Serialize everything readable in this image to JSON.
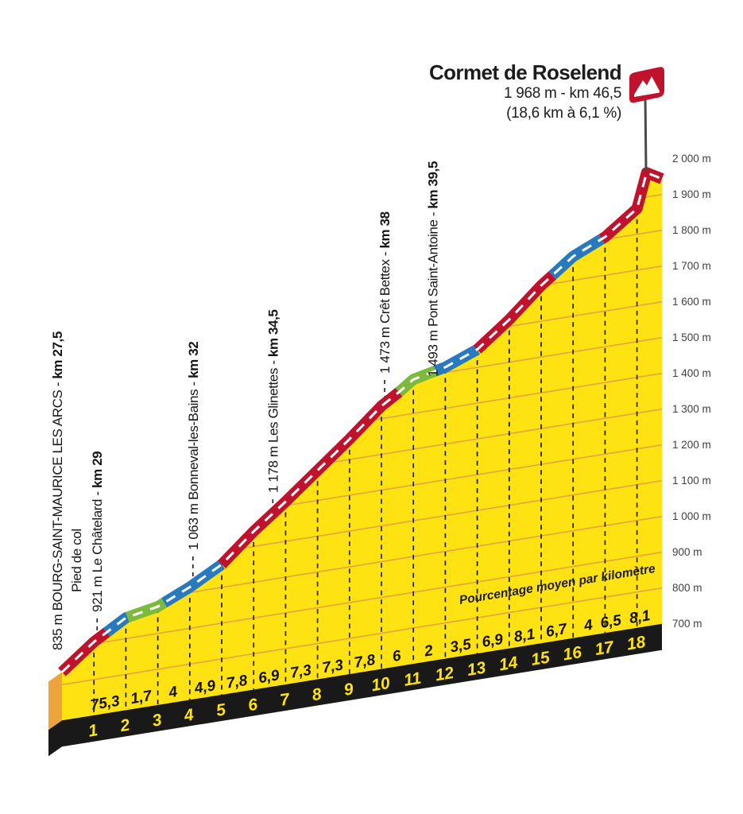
{
  "header": {
    "title": "Cormet de Roselend",
    "summit_line": "1 968 m - km 46,5",
    "stats_line": "(18,6 km à 6,1 %)"
  },
  "chart_data": {
    "type": "area",
    "title": "Cormet de Roselend",
    "summit": {
      "elevation_m": 1968,
      "race_km_label": "km 46,5",
      "race_km_value": 46.5,
      "length_km": 18.6,
      "avg_gradient_pct": 6.1
    },
    "x_axis": {
      "label": "Pourcentage moyen par kilomètre",
      "km_tick_labels": [
        "1",
        "2",
        "3",
        "4",
        "5",
        "6",
        "7",
        "8",
        "9",
        "10",
        "11",
        "12",
        "13",
        "14",
        "15",
        "16",
        "17",
        "18"
      ]
    },
    "y_axis": {
      "unit": "m",
      "min": 700,
      "max": 2000,
      "step": 100,
      "tick_labels": [
        "700 m",
        "800 m",
        "900 m",
        "1 000 m",
        "1 100 m",
        "1 200 m",
        "1 300 m",
        "1 400 m",
        "1 500 m",
        "1 600 m",
        "1 700 m",
        "1 800 m",
        "1 900 m",
        "2 000 m"
      ]
    },
    "gradients_pct_per_km": [
      7,
      5.3,
      1.7,
      4,
      4.9,
      7.8,
      6.9,
      7.3,
      7.3,
      7.8,
      6,
      2,
      3.5,
      6.9,
      8.1,
      6.7,
      4,
      6.5,
      8.1
    ],
    "gradient_labels": [
      "7",
      "5,3",
      "1,7",
      "4",
      "4,9",
      "7,8",
      "6,9",
      "7,3",
      "7,3",
      "7,8",
      "6",
      "2",
      "3,5",
      "6,9",
      "8,1",
      "6,7",
      "4",
      "6,5",
      "8,1"
    ],
    "profile_km_elevation": [
      [
        0,
        835
      ],
      [
        1,
        905
      ],
      [
        2,
        958
      ],
      [
        3,
        975
      ],
      [
        4,
        1015
      ],
      [
        5,
        1064
      ],
      [
        6,
        1142
      ],
      [
        7,
        1211
      ],
      [
        8,
        1284
      ],
      [
        9,
        1357
      ],
      [
        10,
        1435
      ],
      [
        10.55,
        1466
      ],
      [
        11,
        1495
      ],
      [
        12,
        1515
      ],
      [
        13,
        1550
      ],
      [
        14,
        1619
      ],
      [
        15,
        1700
      ],
      [
        16,
        1767
      ],
      [
        17,
        1807
      ],
      [
        18,
        1872
      ],
      [
        18.3,
        1968
      ],
      [
        18.78,
        1944
      ]
    ],
    "gradient_color_sections": [
      [
        0,
        1.4,
        "red"
      ],
      [
        1.4,
        2.05,
        "blue"
      ],
      [
        2.05,
        3.2,
        "green"
      ],
      [
        3.2,
        5,
        "blue"
      ],
      [
        5,
        10.55,
        "red"
      ],
      [
        10.55,
        11.7,
        "green"
      ],
      [
        11.7,
        13,
        "blue"
      ],
      [
        13,
        15.35,
        "red"
      ],
      [
        15.35,
        16.9,
        "blue"
      ],
      [
        16.9,
        18.78,
        "red"
      ]
    ],
    "waypoints": [
      {
        "elevation": "835 m",
        "name": "BOURG-SAINT-MAURICE LES ARCS",
        "km": "km 27,5",
        "race_km": 27.5,
        "line2": "Pied de col"
      },
      {
        "elevation": "921 m",
        "name": "Le Châtelard",
        "km": "km 29",
        "race_km": 29
      },
      {
        "elevation": "1 063 m",
        "name": "Bonneval-les-Bains",
        "km": "km 32",
        "race_km": 32
      },
      {
        "elevation": "1 178 m",
        "name": "Les Glinettes",
        "km": "km 34,5",
        "race_km": 34.5
      },
      {
        "elevation": "1 473 m",
        "name": "Crêt Bettex",
        "km": "km 38",
        "race_km": 38
      },
      {
        "elevation": "1 493 m",
        "name": "Pont Saint-Antoine",
        "km": "km 39,5",
        "race_km": 39.5
      }
    ],
    "colors": {
      "red": "#C0122C",
      "blue": "#2879BE",
      "green": "#7CB93C",
      "area_yellow": "#FFE211",
      "gridline_gold": "#E2A63C",
      "base_black": "#191919",
      "side_orange": "#EDA43B",
      "km_number_yellow": "#FFE211",
      "centerline_white": "#FFFFFF",
      "flag_red": "#C0122C",
      "axis_text": "#3F3F3F",
      "label_text": "#161616",
      "pourcentage_text": "#1B1B33"
    }
  }
}
